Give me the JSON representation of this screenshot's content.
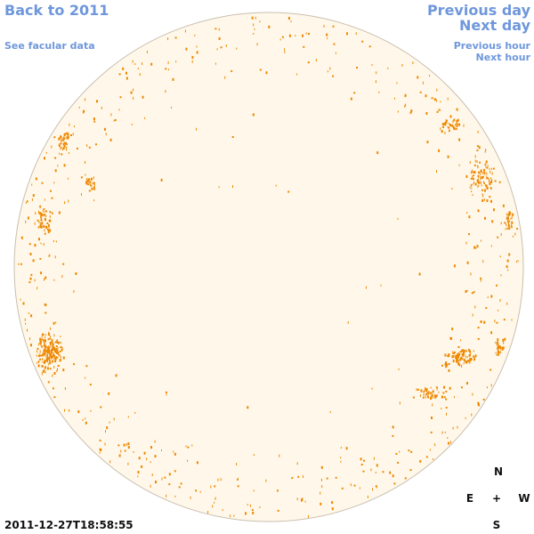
{
  "nav": {
    "back_label": "Back to 2011",
    "facular_label": "See facular data",
    "prev_day_label": "Previous day",
    "next_day_label": "Next day",
    "prev_hour_label": "Previous hour",
    "next_hour_label": "Next hour"
  },
  "compass": {
    "north": "N",
    "east": "E",
    "center": "+",
    "west": "W",
    "south": "S"
  },
  "timestamp": "2011-12-27T18:58:55",
  "colors": {
    "link": "#6f97dc",
    "disk_fill": "#fff8ea",
    "disk_edge": "#c9bfae",
    "facula": "#ee8800"
  }
}
